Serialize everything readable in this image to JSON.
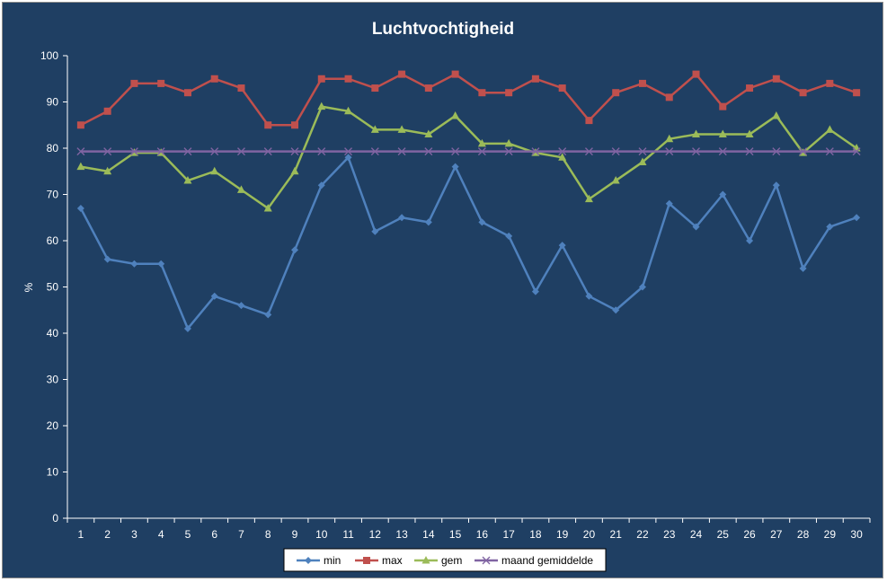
{
  "chart_data": {
    "type": "line",
    "title": "Luchtvochtigheid",
    "xlabel": "",
    "ylabel": "%",
    "ylim": [
      0,
      100
    ],
    "yticks": [
      0,
      10,
      20,
      30,
      40,
      50,
      60,
      70,
      80,
      90,
      100
    ],
    "x": [
      1,
      2,
      3,
      4,
      5,
      6,
      7,
      8,
      9,
      10,
      11,
      12,
      13,
      14,
      15,
      16,
      17,
      18,
      19,
      20,
      21,
      22,
      23,
      24,
      25,
      26,
      27,
      28,
      29,
      30
    ],
    "grid": false,
    "legend_position": "bottom",
    "series": [
      {
        "name": "min",
        "color": "#4f81bd",
        "marker": "diamond",
        "values": [
          67,
          56,
          55,
          55,
          41,
          48,
          46,
          44,
          58,
          72,
          78,
          62,
          65,
          64,
          76,
          64,
          61,
          49,
          59,
          48,
          45,
          50,
          68,
          63,
          70,
          60,
          72,
          54,
          63,
          65
        ]
      },
      {
        "name": "max",
        "color": "#c0504d",
        "marker": "square",
        "values": [
          85,
          88,
          94,
          94,
          92,
          95,
          93,
          85,
          85,
          95,
          95,
          93,
          96,
          93,
          96,
          92,
          92,
          95,
          93,
          86,
          92,
          94,
          91,
          96,
          89,
          93,
          95,
          92,
          94,
          92
        ]
      },
      {
        "name": "gem",
        "color": "#9bbb59",
        "marker": "triangle",
        "values": [
          76,
          75,
          79,
          79,
          73,
          75,
          71,
          67,
          75,
          89,
          88,
          84,
          84,
          83,
          87,
          81,
          81,
          79,
          78,
          69,
          73,
          77,
          82,
          83,
          83,
          83,
          87,
          79,
          84,
          80
        ]
      },
      {
        "name": "maand gemiddelde",
        "color": "#8064a2",
        "marker": "x",
        "values": [
          79.3,
          79.3,
          79.3,
          79.3,
          79.3,
          79.3,
          79.3,
          79.3,
          79.3,
          79.3,
          79.3,
          79.3,
          79.3,
          79.3,
          79.3,
          79.3,
          79.3,
          79.3,
          79.3,
          79.3,
          79.3,
          79.3,
          79.3,
          79.3,
          79.3,
          79.3,
          79.3,
          79.3,
          79.3,
          79.3
        ]
      }
    ]
  }
}
